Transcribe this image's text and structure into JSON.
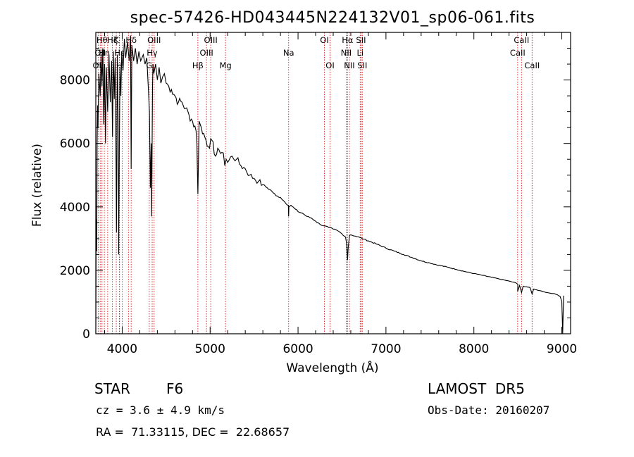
{
  "chart_data": {
    "type": "line",
    "title": "spec-57426-HD043445N224132V01_sp06-061.fits",
    "xlabel": "Wavelength (Å)",
    "ylabel": "Flux (relative)",
    "xlim": [
      3700,
      9100
    ],
    "ylim": [
      0,
      9500
    ],
    "x_ticks": [
      4000,
      5000,
      6000,
      7000,
      8000,
      9000
    ],
    "y_ticks": [
      0,
      2000,
      4000,
      6000,
      8000
    ],
    "grid": false,
    "series": [
      {
        "x": [
          3700,
          3705,
          3710,
          3715,
          3720,
          3725,
          3735,
          3750,
          3760,
          3770,
          3780,
          3790,
          3800,
          3810,
          3820,
          3835,
          3850,
          3865,
          3880,
          3890,
          3900,
          3910,
          3920,
          3930,
          3935,
          3945,
          3955,
          3960,
          3968,
          3975,
          3985,
          3995,
          4010,
          4025,
          4040,
          4060,
          4080,
          4095,
          4102,
          4110,
          4130,
          4150,
          4170,
          4190,
          4210,
          4240,
          4260,
          4280,
          4300,
          4310,
          4320,
          4330,
          4335,
          4340,
          4345,
          4350,
          4360,
          4380,
          4400,
          4420,
          4440,
          4460,
          4480,
          4500,
          4530,
          4560,
          4600,
          4640,
          4680,
          4720,
          4760,
          4800,
          4840,
          4850,
          4855,
          4861,
          4868,
          4875,
          4900,
          4940,
          4980,
          5020,
          5060,
          5100,
          5150,
          5167,
          5183,
          5200,
          5250,
          5300,
          5350,
          5400,
          5450,
          5500,
          5550,
          5600,
          5650,
          5700,
          5750,
          5800,
          5850,
          5890,
          5893,
          5896,
          5920,
          5960,
          6000,
          6050,
          6100,
          6150,
          6200,
          6250,
          6300,
          6350,
          6400,
          6450,
          6500,
          6540,
          6555,
          6563,
          6570,
          6585,
          6600,
          6650,
          6700,
          6750,
          6800,
          6900,
          7000,
          7100,
          7200,
          7300,
          7400,
          7500,
          7600,
          7700,
          7800,
          7900,
          8000,
          8100,
          8200,
          8300,
          8400,
          8480,
          8500,
          8498,
          8520,
          8542,
          8560,
          8600,
          8640,
          8662,
          8680,
          8700,
          8750,
          8800,
          8850,
          8900,
          8950,
          8980,
          9000,
          9010,
          9020
        ],
        "y": [
          0,
          3600,
          2600,
          6000,
          7200,
          6500,
          8200,
          7500,
          8800,
          7800,
          9000,
          6600,
          8500,
          6000,
          8400,
          7000,
          8800,
          7300,
          8600,
          6200,
          8900,
          7400,
          8700,
          5400,
          3200,
          8800,
          6500,
          2500,
          6000,
          8400,
          7500,
          8900,
          8300,
          9300,
          8700,
          9200,
          8600,
          9400,
          5200,
          9100,
          8600,
          9000,
          8500,
          8900,
          8600,
          8800,
          8500,
          8700,
          7600,
          7000,
          4600,
          6000,
          3700,
          5800,
          7800,
          8500,
          8200,
          8500,
          8000,
          8400,
          7900,
          8100,
          8200,
          7900,
          7800,
          7700,
          7500,
          7300,
          7300,
          7100,
          6900,
          6700,
          6400,
          6000,
          5200,
          4400,
          5500,
          6700,
          6500,
          6200,
          5900,
          6100,
          5600,
          5800,
          5700,
          5300,
          5500,
          5400,
          5600,
          5500,
          5300,
          5200,
          5000,
          4900,
          4800,
          4700,
          4600,
          4500,
          4350,
          4300,
          4150,
          4050,
          3700,
          4000,
          4050,
          3950,
          3850,
          3800,
          3700,
          3650,
          3550,
          3450,
          3400,
          3350,
          3300,
          3250,
          3150,
          3050,
          2800,
          2320,
          2700,
          3100,
          3120,
          3080,
          3040,
          2980,
          2930,
          2820,
          2700,
          2600,
          2500,
          2400,
          2300,
          2230,
          2160,
          2100,
          2030,
          1960,
          1900,
          1840,
          1780,
          1720,
          1660,
          1600,
          1560,
          1340,
          1520,
          1300,
          1500,
          1480,
          1450,
          1250,
          1410,
          1390,
          1360,
          1320,
          1290,
          1270,
          1230,
          1180,
          1020,
          0,
          1200
        ]
      }
    ],
    "annotations": {
      "note": "vertical red dotted lines mark spectral features",
      "lines": [
        {
          "x": 3727,
          "label": "OII",
          "row": 3
        },
        {
          "x": 3750,
          "label": "OII",
          "row": 2
        },
        {
          "x": 3770,
          "label": "Hθ",
          "row": 1
        },
        {
          "x": 3797,
          "label": "Hη",
          "row": 2
        },
        {
          "x": 3835,
          "label": "",
          "row": 0
        },
        {
          "x": 3889,
          "label": "Hζ",
          "row": 1
        },
        {
          "x": 3933,
          "label": "K",
          "row": 1
        },
        {
          "x": 3968,
          "label": "H",
          "row": 3
        },
        {
          "x": 3970,
          "label": "Hε",
          "row": 2
        },
        {
          "x": 4000,
          "label": "",
          "row": 0
        },
        {
          "x": 4071,
          "label": "",
          "row": 0
        },
        {
          "x": 4102,
          "label": "Hδ",
          "row": 1
        },
        {
          "x": 4308,
          "label": "G",
          "row": 3
        },
        {
          "x": 4341,
          "label": "Hγ",
          "row": 2
        },
        {
          "x": 4363,
          "label": "OIII",
          "row": 1
        },
        {
          "x": 4861,
          "label": "Hβ",
          "row": 3
        },
        {
          "x": 4959,
          "label": "OIII",
          "row": 2
        },
        {
          "x": 5007,
          "label": "OIII",
          "row": 1
        },
        {
          "x": 5175,
          "label": "Mg",
          "row": 3
        },
        {
          "x": 5893,
          "label": "Na",
          "row": 2
        },
        {
          "x": 6300,
          "label": "OI",
          "row": 1
        },
        {
          "x": 6364,
          "label": "OI",
          "row": 3
        },
        {
          "x": 6548,
          "label": "NII",
          "row": 2
        },
        {
          "x": 6563,
          "label": "Hα",
          "row": 1
        },
        {
          "x": 6584,
          "label": "NII",
          "row": 3
        },
        {
          "x": 6707,
          "label": "Li",
          "row": 2
        },
        {
          "x": 6716,
          "label": "SII",
          "row": 1
        },
        {
          "x": 6731,
          "label": "SII",
          "row": 3
        },
        {
          "x": 8498,
          "label": "CaII",
          "row": 2
        },
        {
          "x": 8542,
          "label": "CaII",
          "row": 1
        },
        {
          "x": 8662,
          "label": "CaII",
          "row": 3
        }
      ]
    }
  },
  "info": {
    "object_type": "STAR",
    "subclass": "F6",
    "survey": "LAMOST  DR5",
    "cz_line": "cz = 3.6 ± 4.9 km/s",
    "obs_date": "Obs-Date: 20160207",
    "coords": "RA =  71.33115, DEC =  22.68657"
  }
}
